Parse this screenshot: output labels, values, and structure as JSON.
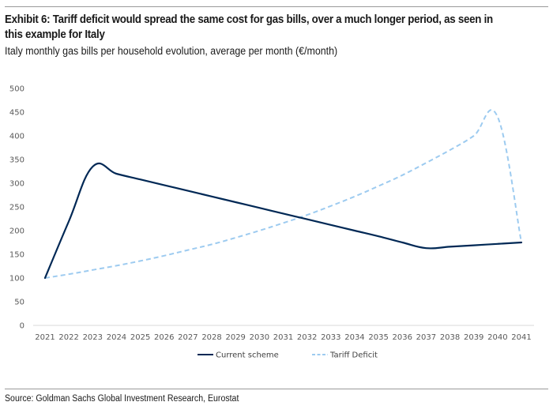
{
  "header": {
    "title": "Exhibit 6: Tariff deficit would spread the same cost for gas bills, over a much longer period, as seen in this example for Italy",
    "subtitle": "Italy monthly gas bills per household evolution, average per month (€/month)"
  },
  "footer": {
    "source": "Source: Goldman Sachs Global Investment Research, Eurostat"
  },
  "chart_data": {
    "type": "line",
    "title": "Italy monthly gas bills per household evolution, average per month (€/month)",
    "xlabel": "",
    "ylabel": "",
    "x": [
      "2021",
      "2022",
      "2023",
      "2024",
      "2025",
      "2026",
      "2027",
      "2028",
      "2029",
      "2030",
      "2031",
      "2032",
      "2033",
      "2034",
      "2035",
      "2036",
      "2037",
      "2038",
      "2039",
      "2040",
      "2041"
    ],
    "yticks": [
      0,
      50,
      100,
      150,
      200,
      250,
      300,
      350,
      400,
      450,
      500
    ],
    "ylim": [
      0,
      500
    ],
    "grid": false,
    "legend_position": "bottom-center",
    "series": [
      {
        "name": "Current scheme",
        "style": "solid",
        "color": "#002855",
        "values": [
          100,
          220,
          335,
          320,
          308,
          296,
          284,
          272,
          260,
          248,
          236,
          224,
          212,
          200,
          188,
          175,
          163,
          166,
          169,
          172,
          175
        ]
      },
      {
        "name": "Tariff Deficit",
        "style": "dashed",
        "color": "#9dcbf0",
        "values": [
          100,
          108,
          117,
          126,
          136,
          147,
          159,
          171,
          185,
          200,
          216,
          233,
          252,
          272,
          294,
          317,
          343,
          370,
          400,
          440,
          175
        ]
      }
    ]
  }
}
